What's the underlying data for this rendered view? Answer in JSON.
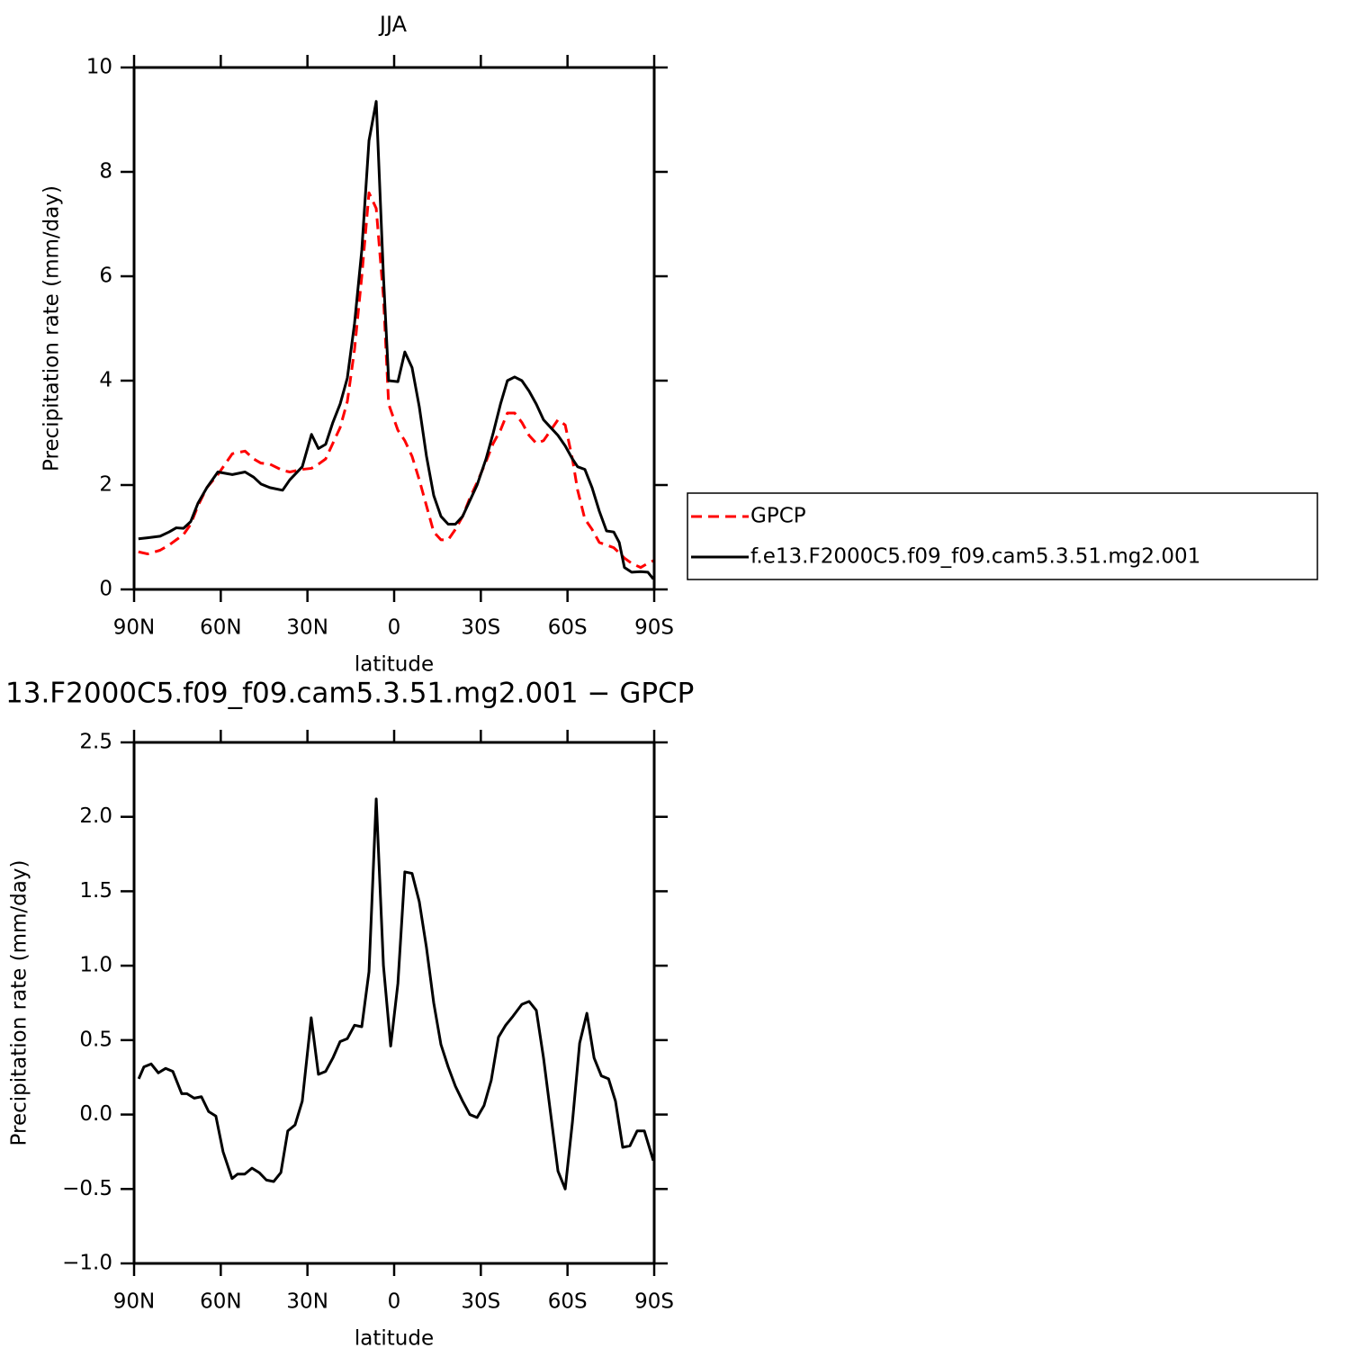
{
  "chart_data": [
    {
      "type": "line",
      "title": "JJA",
      "xlabel": "latitude",
      "ylabel": "Precipitation rate (mm/day)",
      "x": [
        88.5,
        85.3,
        81,
        77.9,
        75.4,
        72.9,
        70.4,
        67.9,
        64.8,
        61,
        56,
        51.6,
        48.6,
        46.1,
        43,
        38.6,
        36.1,
        31.8,
        28.6,
        26.2,
        23.7,
        21.2,
        18.7,
        16.2,
        13.7,
        11.2,
        8.7,
        6.2,
        3.7,
        1.9,
        -1.3,
        -3.7,
        -6.2,
        -8.7,
        -11.2,
        -13.7,
        -16.2,
        -18.7,
        -21.2,
        -23.7,
        -26.2,
        -28.7,
        -31.8,
        -34.3,
        -36.8,
        -39.2,
        -41.7,
        -44.2,
        -46.7,
        -49.2,
        -51.7,
        -54.2,
        -56.7,
        -59.2,
        -61.7,
        -63.5,
        -66,
        -68.5,
        -71,
        -73.5,
        -76,
        -77.9,
        -79.7,
        -82.2,
        -85.3,
        -87.8,
        -89.7
      ],
      "series": [
        {
          "name": "GPCP",
          "color": "#ff0000",
          "dashed": true,
          "values": [
            0.72,
            0.68,
            0.75,
            0.85,
            0.95,
            1.05,
            1.25,
            1.6,
            1.95,
            2.2,
            2.6,
            2.65,
            2.5,
            2.42,
            2.4,
            2.28,
            2.25,
            2.3,
            2.32,
            2.4,
            2.5,
            2.8,
            3.1,
            3.6,
            4.6,
            6.0,
            7.6,
            7.3,
            5.6,
            3.55,
            3.05,
            2.85,
            2.55,
            2.1,
            1.6,
            1.1,
            0.95,
            0.95,
            1.15,
            1.4,
            1.75,
            2.05,
            2.45,
            2.8,
            3.05,
            3.38,
            3.38,
            3.2,
            2.95,
            2.8,
            2.85,
            3.05,
            3.25,
            3.15,
            2.5,
            1.9,
            1.35,
            1.15,
            0.9,
            0.85,
            0.8,
            0.7,
            0.6,
            0.5,
            0.42,
            0.5,
            0.55
          ]
        },
        {
          "name": "f.e13.F2000C5.f09_f09.cam5.3.51.mg2.001",
          "color": "#000000",
          "dashed": false,
          "values": [
            0.97,
            0.99,
            1.02,
            1.1,
            1.18,
            1.17,
            1.3,
            1.65,
            1.95,
            2.25,
            2.2,
            2.25,
            2.15,
            2.02,
            1.95,
            1.9,
            2.1,
            2.35,
            2.97,
            2.7,
            2.78,
            3.2,
            3.55,
            4.05,
            5.1,
            6.5,
            8.6,
            9.35,
            6.0,
            4.0,
            3.98,
            4.55,
            4.25,
            3.5,
            2.55,
            1.8,
            1.4,
            1.25,
            1.25,
            1.4,
            1.7,
            2.0,
            2.5,
            3.0,
            3.55,
            4.0,
            4.07,
            4.0,
            3.8,
            3.55,
            3.25,
            3.1,
            2.95,
            2.75,
            2.5,
            2.35,
            2.3,
            1.95,
            1.5,
            1.12,
            1.1,
            0.9,
            0.42,
            0.33,
            0.34,
            0.33,
            0.2
          ]
        }
      ],
      "xlim": [
        90,
        -90
      ],
      "xticks": [
        {
          "value": 90,
          "label": "90N"
        },
        {
          "value": 60,
          "label": "60N"
        },
        {
          "value": 30,
          "label": "30N"
        },
        0,
        {
          "value": -30,
          "label": "30S"
        },
        {
          "value": -60,
          "label": "60S"
        },
        {
          "value": -90,
          "label": "90S"
        }
      ],
      "ylim": [
        0,
        10
      ],
      "yticks": [
        0,
        2,
        4,
        6,
        8,
        10
      ],
      "legend": "right"
    },
    {
      "type": "line",
      "title": "13.F2000C5.f09_f09.cam5.3.51.mg2.001 − GPCP",
      "xlabel": "latitude",
      "ylabel": "Precipitation rate (mm/day)",
      "x": [
        88.4,
        86.6,
        84.1,
        81.6,
        79.1,
        76.6,
        73.5,
        71.7,
        69.2,
        66.7,
        64.2,
        61.7,
        59.2,
        56.1,
        54.2,
        51.7,
        49.2,
        46.7,
        44.2,
        41.7,
        39.2,
        36.8,
        34.3,
        31.8,
        28.7,
        26.2,
        23.7,
        21.2,
        18.7,
        16.2,
        13.7,
        11.2,
        8.7,
        6.2,
        3.7,
        1.2,
        -1.3,
        -3.7,
        -6.2,
        -8.7,
        -11.2,
        -13.7,
        -16.2,
        -18.7,
        -21.2,
        -23.7,
        -26.2,
        -28.7,
        -31.1,
        -33.6,
        -36.1,
        -38.6,
        -41.1,
        -44.2,
        -46.7,
        -49.2,
        -51.7,
        -54.2,
        -56.7,
        -59.2,
        -61.7,
        -64.2,
        -66.7,
        -69.2,
        -71.7,
        -74.2,
        -76.6,
        -79.1,
        -81.6,
        -84.1,
        -86.6,
        -89.7
      ],
      "series": [
        {
          "color": "#000000",
          "dashed": false,
          "values": [
            0.24,
            0.32,
            0.34,
            0.28,
            0.31,
            0.29,
            0.14,
            0.14,
            0.11,
            0.12,
            0.02,
            -0.01,
            -0.25,
            -0.43,
            -0.4,
            -0.4,
            -0.36,
            -0.39,
            -0.44,
            -0.45,
            -0.39,
            -0.11,
            -0.07,
            0.09,
            0.65,
            0.27,
            0.29,
            0.38,
            0.49,
            0.51,
            0.6,
            0.59,
            0.96,
            2.12,
            1.0,
            0.46,
            0.88,
            1.63,
            1.62,
            1.43,
            1.12,
            0.75,
            0.47,
            0.32,
            0.19,
            0.09,
            0.0,
            -0.02,
            0.06,
            0.23,
            0.52,
            0.6,
            0.66,
            0.74,
            0.76,
            0.7,
            0.38,
            0.0,
            -0.38,
            -0.5,
            -0.05,
            0.48,
            0.68,
            0.38,
            0.26,
            0.24,
            0.09,
            -0.22,
            -0.21,
            -0.11,
            -0.11,
            -0.31
          ]
        }
      ],
      "xlim": [
        90,
        -90
      ],
      "xticks": [
        {
          "value": 90,
          "label": "90N"
        },
        {
          "value": 60,
          "label": "60N"
        },
        {
          "value": 30,
          "label": "30N"
        },
        0,
        {
          "value": -30,
          "label": "30S"
        },
        {
          "value": -60,
          "label": "60S"
        },
        {
          "value": -90,
          "label": "90S"
        }
      ],
      "ylim": [
        -1,
        2.5
      ],
      "yticks": [
        2.5,
        {
          "value": 2,
          "label": "2.0"
        },
        1.5,
        {
          "value": 1,
          "label": "1.0"
        },
        0.5,
        {
          "value": 0,
          "label": "0.0"
        },
        {
          "value": -0.5,
          "label": "−0.5"
        },
        {
          "value": -1,
          "label": "−1.0"
        }
      ]
    }
  ]
}
